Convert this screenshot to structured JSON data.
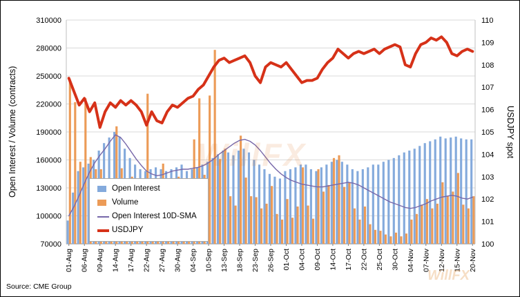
{
  "watermark": "WillFX",
  "legend": {
    "items": [
      {
        "label": "Open Interest"
      },
      {
        "label": "Volume"
      },
      {
        "label": "Open Interest 10D-SMA"
      },
      {
        "label": "USDJPY"
      }
    ]
  },
  "chart_data": {
    "type": "bar",
    "subtype": "combo-bar-line-dual-axis",
    "source": "Source: CME Group",
    "left_axis": {
      "title": "Open Interest / Volume (contracts)",
      "min": 70000,
      "max": 310000,
      "step": 30000,
      "tick_labels": [
        "70000",
        "100000",
        "130000",
        "160000",
        "190000",
        "220000",
        "250000",
        "280000",
        "310000"
      ]
    },
    "right_axis": {
      "title": "USDJPY spot",
      "min": 100,
      "max": 110,
      "step": 1,
      "tick_labels": [
        "100",
        "101",
        "102",
        "103",
        "104",
        "105",
        "106",
        "107",
        "108",
        "109",
        "110"
      ]
    },
    "x_count": 79,
    "x_tick_positions": [
      0,
      3,
      6,
      9,
      12,
      15,
      18,
      21,
      24,
      27,
      30,
      33,
      36,
      39,
      42,
      45,
      48,
      51,
      54,
      57,
      60,
      63,
      66,
      69,
      72,
      75,
      78
    ],
    "x_tick_labels": [
      "01-Aug",
      "06-Aug",
      "09-Aug",
      "14-Aug",
      "17-Aug",
      "22-Aug",
      "27-Aug",
      "30-Aug",
      "04-Sep",
      "10-Sep",
      "13-Sep",
      "18-Sep",
      "23-Sep",
      "26-Sep",
      "01-Oct",
      "04-Oct",
      "09-Oct",
      "14-Oct",
      "17-Oct",
      "22-Oct",
      "25-Oct",
      "30-Oct",
      "04-Nov",
      "07-Nov",
      "12-Nov",
      "15-Nov",
      "20-Nov"
    ],
    "series": [
      {
        "name": "Open Interest",
        "type": "bar",
        "axis": "left",
        "color": "#84aadc",
        "values": [
          95000,
          125000,
          148000,
          152000,
          156000,
          160000,
          170000,
          178000,
          184000,
          190000,
          185000,
          172000,
          162000,
          155000,
          150000,
          148000,
          150000,
          152000,
          150000,
          148000,
          150000,
          152000,
          155000,
          148000,
          150000,
          152000,
          155000,
          158000,
          162000,
          166000,
          170000,
          168000,
          165000,
          170000,
          172000,
          168000,
          160000,
          155000,
          150000,
          145000,
          142000,
          140000,
          148000,
          150000,
          152000,
          155000,
          155000,
          150000,
          148000,
          152000,
          155000,
          158000,
          160000,
          158000,
          155000,
          150000,
          148000,
          150000,
          152000,
          155000,
          155000,
          158000,
          160000,
          162000,
          165000,
          168000,
          170000,
          172000,
          175000,
          178000,
          180000,
          182000,
          185000,
          183000,
          184000,
          185000,
          183000,
          182000,
          182000
        ]
      },
      {
        "name": "Volume",
        "type": "bar",
        "axis": "left",
        "color": "#ec9b57",
        "values": [
          246000,
          222000,
          158000,
          226000,
          163000,
          150000,
          150000,
          118000,
          127000,
          196000,
          151000,
          133000,
          142000,
          118000,
          112000,
          231000,
          119000,
          108000,
          156000,
          128000,
          118000,
          142000,
          96000,
          103000,
          182000,
          226000,
          144000,
          229000,
          278000,
          161000,
          172000,
          121000,
          111000,
          186000,
          141000,
          121000,
          120000,
          108000,
          113000,
          132000,
          102000,
          96000,
          118000,
          98000,
          110000,
          152000,
          111000,
          97000,
          150000,
          126000,
          133000,
          162000,
          165000,
          131000,
          136000,
          108000,
          96000,
          110000,
          91000,
          85000,
          84000,
          80000,
          78000,
          82000,
          78000,
          81000,
          96000,
          102000,
          112000,
          118000,
          108000,
          113000,
          136000,
          121000,
          126000,
          146000,
          112000,
          108000,
          121000
        ]
      },
      {
        "name": "Open Interest 10D-SMA",
        "type": "line",
        "axis": "left",
        "color": "#7667a9",
        "stroke_width": 1.4,
        "values": [
          100000,
          110000,
          122000,
          135000,
          147000,
          157000,
          165000,
          172000,
          180000,
          187000,
          184000,
          177000,
          169000,
          161000,
          154000,
          148000,
          145000,
          143000,
          144000,
          146000,
          148000,
          149000,
          150000,
          150000,
          151000,
          152000,
          154000,
          157000,
          161000,
          166000,
          170000,
          174000,
          178000,
          181000,
          182000,
          180000,
          176000,
          170000,
          163000,
          156000,
          150000,
          145000,
          141000,
          138000,
          136000,
          134000,
          133000,
          132000,
          131000,
          131000,
          132000,
          133000,
          134000,
          135000,
          136000,
          135000,
          133000,
          130000,
          127000,
          124000,
          121000,
          118000,
          115000,
          113000,
          111000,
          109000,
          108000,
          109000,
          111000,
          113000,
          116000,
          118000,
          120000,
          121000,
          122000,
          121000,
          119000,
          118000,
          120000
        ]
      },
      {
        "name": "USDJPY",
        "type": "line",
        "axis": "right",
        "color": "#d63118",
        "stroke_width": 4,
        "values": [
          107.4,
          106.8,
          106.2,
          106.5,
          105.9,
          106.3,
          105.2,
          105.9,
          106.3,
          106.1,
          106.4,
          106.2,
          106.4,
          106.2,
          105.9,
          105.3,
          105.9,
          105.5,
          105.4,
          105.9,
          106.2,
          106.1,
          106.3,
          106.5,
          106.6,
          106.9,
          107.1,
          107.5,
          107.9,
          108.2,
          108.3,
          108.1,
          108.2,
          108.3,
          108.4,
          108.1,
          107.5,
          107.2,
          107.9,
          108.1,
          108.0,
          107.9,
          108.1,
          107.8,
          107.5,
          107.2,
          107.3,
          107.3,
          107.4,
          107.8,
          108.1,
          108.3,
          108.7,
          108.5,
          108.3,
          108.5,
          108.6,
          108.5,
          108.6,
          108.7,
          108.5,
          108.7,
          108.8,
          108.9,
          108.8,
          108.0,
          107.9,
          108.5,
          108.9,
          109.0,
          109.2,
          109.1,
          109.25,
          109.0,
          108.5,
          108.4,
          108.6,
          108.7,
          108.6
        ]
      }
    ]
  }
}
